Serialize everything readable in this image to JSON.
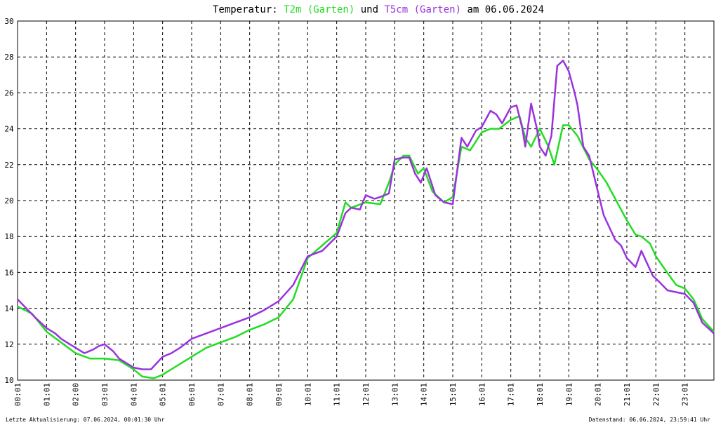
{
  "chart_data": {
    "type": "line",
    "title": {
      "prefix": "Temperatur: ",
      "series1": "T2m (Garten)",
      "middle": " und ",
      "series2": "T5cm (Garten)",
      "suffix": " am 06.06.2024"
    },
    "xlabel": "",
    "ylabel": "",
    "ylim": [
      10,
      30
    ],
    "y_ticks": [
      "10",
      "12",
      "14",
      "16",
      "18",
      "20",
      "22",
      "24",
      "26",
      "28",
      "30"
    ],
    "x_range_hours": [
      0,
      24
    ],
    "x_ticks": [
      "00:01",
      "01:01",
      "02:00",
      "03:01",
      "04:01",
      "05:01",
      "06:01",
      "07:01",
      "08:01",
      "09:01",
      "10:01",
      "11:01",
      "12:01",
      "13:01",
      "14:01",
      "15:01",
      "16:01",
      "17:01",
      "18:01",
      "19:01",
      "20:01",
      "21:01",
      "22:01",
      "23:01"
    ],
    "grid": true,
    "colors": {
      "series1": "#22dd22",
      "series2": "#9933dd"
    },
    "series": [
      {
        "name": "T2m (Garten)",
        "points": [
          [
            0,
            14.1
          ],
          [
            0.5,
            13.7
          ],
          [
            1,
            12.7
          ],
          [
            1.5,
            12.1
          ],
          [
            2,
            11.5
          ],
          [
            2.5,
            11.2
          ],
          [
            3,
            11.2
          ],
          [
            3.5,
            11.1
          ],
          [
            4,
            10.6
          ],
          [
            4.3,
            10.2
          ],
          [
            4.7,
            10.1
          ],
          [
            5,
            10.3
          ],
          [
            5.5,
            10.8
          ],
          [
            6,
            11.3
          ],
          [
            6.5,
            11.8
          ],
          [
            7,
            12.1
          ],
          [
            7.5,
            12.4
          ],
          [
            8,
            12.8
          ],
          [
            8.5,
            13.1
          ],
          [
            9,
            13.5
          ],
          [
            9.5,
            14.5
          ],
          [
            10,
            16.8
          ],
          [
            10.5,
            17.5
          ],
          [
            11,
            18.2
          ],
          [
            11.3,
            19.9
          ],
          [
            11.5,
            19.6
          ],
          [
            12,
            19.9
          ],
          [
            12.5,
            19.8
          ],
          [
            12.8,
            21
          ],
          [
            13,
            22.0
          ],
          [
            13.3,
            22.5
          ],
          [
            13.5,
            22.5
          ],
          [
            13.8,
            21.5
          ],
          [
            14,
            21.8
          ],
          [
            14.3,
            20.5
          ],
          [
            14.7,
            19.9
          ],
          [
            15,
            20.2
          ],
          [
            15.3,
            23.0
          ],
          [
            15.6,
            22.8
          ],
          [
            16,
            23.8
          ],
          [
            16.3,
            24.0
          ],
          [
            16.6,
            24.0
          ],
          [
            17,
            24.5
          ],
          [
            17.3,
            24.7
          ],
          [
            17.5,
            23.5
          ],
          [
            17.7,
            23.0
          ],
          [
            18,
            24.0
          ],
          [
            18.3,
            23.0
          ],
          [
            18.5,
            22.0
          ],
          [
            18.8,
            24.2
          ],
          [
            19,
            24.2
          ],
          [
            19.3,
            23.6
          ],
          [
            19.7,
            22.3
          ],
          [
            20,
            21.7
          ],
          [
            20.3,
            21.0
          ],
          [
            20.7,
            19.8
          ],
          [
            21,
            18.9
          ],
          [
            21.3,
            18.1
          ],
          [
            21.5,
            18.0
          ],
          [
            21.8,
            17.6
          ],
          [
            22,
            16.9
          ],
          [
            22.3,
            16.2
          ],
          [
            22.7,
            15.3
          ],
          [
            23,
            15.1
          ],
          [
            23.3,
            14.5
          ],
          [
            23.6,
            13.4
          ],
          [
            24,
            12.7
          ]
        ]
      },
      {
        "name": "T5cm (Garten)",
        "points": [
          [
            0,
            14.5
          ],
          [
            0.3,
            14.0
          ],
          [
            0.6,
            13.5
          ],
          [
            1,
            12.9
          ],
          [
            1.3,
            12.6
          ],
          [
            1.5,
            12.3
          ],
          [
            2,
            11.8
          ],
          [
            2.3,
            11.5
          ],
          [
            2.6,
            11.7
          ],
          [
            2.8,
            11.9
          ],
          [
            3,
            12.0
          ],
          [
            3.3,
            11.6
          ],
          [
            3.5,
            11.2
          ],
          [
            3.8,
            10.9
          ],
          [
            4,
            10.7
          ],
          [
            4.3,
            10.6
          ],
          [
            4.6,
            10.6
          ],
          [
            5,
            11.3
          ],
          [
            5.3,
            11.5
          ],
          [
            5.6,
            11.8
          ],
          [
            6,
            12.3
          ],
          [
            6.5,
            12.6
          ],
          [
            7,
            12.9
          ],
          [
            7.5,
            13.2
          ],
          [
            8,
            13.5
          ],
          [
            8.5,
            13.9
          ],
          [
            9,
            14.4
          ],
          [
            9.5,
            15.3
          ],
          [
            10,
            16.9
          ],
          [
            10.5,
            17.2
          ],
          [
            11,
            18.0
          ],
          [
            11.3,
            19.3
          ],
          [
            11.5,
            19.6
          ],
          [
            11.8,
            19.5
          ],
          [
            12,
            20.3
          ],
          [
            12.3,
            20.1
          ],
          [
            12.5,
            20.2
          ],
          [
            12.8,
            20.4
          ],
          [
            13,
            22.3
          ],
          [
            13.3,
            22.4
          ],
          [
            13.5,
            22.4
          ],
          [
            13.7,
            21.5
          ],
          [
            13.9,
            21.0
          ],
          [
            14.1,
            21.8
          ],
          [
            14.4,
            20.3
          ],
          [
            14.7,
            19.9
          ],
          [
            15,
            19.8
          ],
          [
            15.3,
            23.5
          ],
          [
            15.5,
            23.0
          ],
          [
            15.8,
            23.9
          ],
          [
            16,
            24.1
          ],
          [
            16.3,
            25.0
          ],
          [
            16.5,
            24.8
          ],
          [
            16.7,
            24.3
          ],
          [
            17,
            25.2
          ],
          [
            17.2,
            25.3
          ],
          [
            17.4,
            24.0
          ],
          [
            17.5,
            23.0
          ],
          [
            17.7,
            25.4
          ],
          [
            17.9,
            24.0
          ],
          [
            18,
            23.0
          ],
          [
            18.2,
            22.5
          ],
          [
            18.4,
            23.6
          ],
          [
            18.6,
            27.5
          ],
          [
            18.8,
            27.8
          ],
          [
            19,
            27.2
          ],
          [
            19.2,
            26.0
          ],
          [
            19.3,
            25.3
          ],
          [
            19.5,
            23.0
          ],
          [
            19.7,
            22.5
          ],
          [
            20,
            20.5
          ],
          [
            20.2,
            19.2
          ],
          [
            20.4,
            18.5
          ],
          [
            20.6,
            17.8
          ],
          [
            20.8,
            17.5
          ],
          [
            21,
            16.8
          ],
          [
            21.3,
            16.3
          ],
          [
            21.5,
            17.2
          ],
          [
            21.7,
            16.5
          ],
          [
            21.9,
            15.8
          ],
          [
            22.1,
            15.5
          ],
          [
            22.4,
            15.0
          ],
          [
            22.7,
            14.9
          ],
          [
            23,
            14.8
          ],
          [
            23.3,
            14.3
          ],
          [
            23.6,
            13.2
          ],
          [
            24,
            12.6
          ]
        ]
      }
    ],
    "footer": {
      "left": "Letzte Aktualisierung: 07.06.2024, 00:01:30 Uhr",
      "right": "Datenstand: 06.06.2024, 23:59:41 Uhr"
    }
  }
}
